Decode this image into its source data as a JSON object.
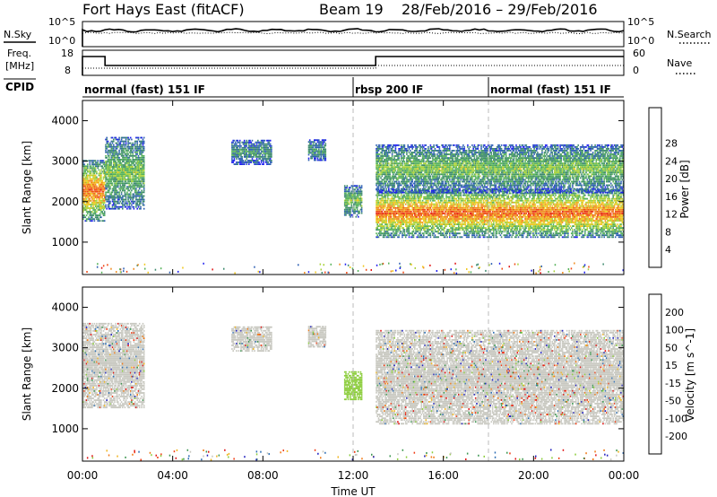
{
  "title": {
    "station": "Fort Hays East (fitACF)",
    "beam": "Beam 19",
    "date_range": "28/Feb/2016 – 29/Feb/2016"
  },
  "top_panels": {
    "nsky_label": "N.Sky",
    "nsearch_label": "N.Search",
    "nsearch_ticks": [
      "10^5",
      "10^0"
    ],
    "nsky_ticks": [
      "10^5",
      "10^0"
    ],
    "freq_label": "Freq.",
    "freq_unit": "[MHz]",
    "freq_ticks": [
      "18",
      "8"
    ],
    "nave_label": "Nave",
    "nave_ticks": [
      "60",
      "0"
    ],
    "cpid_label": "CPID",
    "cpid_segments": [
      {
        "label": "normal (fast) 151 IF",
        "start_hour": 0,
        "end_hour": 12
      },
      {
        "label": "rbsp 200 IF",
        "start_hour": 12,
        "end_hour": 18
      },
      {
        "label": "normal (fast) 151 IF",
        "start_hour": 18,
        "end_hour": 24
      }
    ]
  },
  "x_axis": {
    "label": "Time UT",
    "ticks": [
      "00:00",
      "04:00",
      "08:00",
      "12:00",
      "16:00",
      "20:00",
      "00:00"
    ]
  },
  "chart_data": [
    {
      "type": "heatmap",
      "name": "power",
      "ylabel": "Slant Range [km]",
      "xlim_hours": [
        0,
        24
      ],
      "ylim_km": [
        200,
        4500
      ],
      "yticks": [
        "1000",
        "2000",
        "3000",
        "4000"
      ],
      "colorbar_label": "Power [dB]",
      "colorbar_ticks": [
        "4",
        "8",
        "12",
        "16",
        "20",
        "24",
        "28"
      ],
      "colors": [
        "#1e1ef0",
        "#2d5fb4",
        "#3e8a6e",
        "#56b25a",
        "#a8d23a",
        "#f0c81e",
        "#f08c1e",
        "#f04a14",
        "#e01414"
      ],
      "features": [
        {
          "t0": 0.0,
          "t1": 1.0,
          "r0": 1500,
          "r1": 3000,
          "level": 0.85
        },
        {
          "t0": 1.0,
          "t1": 2.7,
          "r0": 1800,
          "r1": 3600,
          "level": 0.45
        },
        {
          "t0": 6.6,
          "t1": 8.4,
          "r0": 2900,
          "r1": 3500,
          "level": 0.3
        },
        {
          "t0": 10.0,
          "t1": 10.8,
          "r0": 3000,
          "r1": 3500,
          "level": 0.3
        },
        {
          "t0": 11.6,
          "t1": 12.4,
          "r0": 1600,
          "r1": 2400,
          "level": 0.45
        },
        {
          "t0": 13.0,
          "t1": 24.0,
          "r0": 1100,
          "r1": 2300,
          "level": 0.85
        },
        {
          "t0": 13.0,
          "t1": 24.0,
          "r0": 2200,
          "r1": 3400,
          "level": 0.45
        }
      ]
    },
    {
      "type": "heatmap",
      "name": "velocity",
      "ylabel": "Slant Range [km]",
      "xlim_hours": [
        0,
        24
      ],
      "ylim_km": [
        200,
        4500
      ],
      "yticks": [
        "1000",
        "2000",
        "3000",
        "4000"
      ],
      "colorbar_label": "Velocity [m s^-1]",
      "colorbar_ticks": [
        "200",
        "100",
        "50",
        "15",
        "-15",
        "-50",
        "-100",
        "-200"
      ],
      "colors": [
        "#1e1ebe",
        "#2d6eb4",
        "#3c9650",
        "#8ccd3c",
        "#c8c8c0",
        "#f0b41e",
        "#f07814",
        "#f03c14",
        "#e01414"
      ],
      "features": [
        {
          "t0": 0.0,
          "t1": 2.7,
          "r0": 1500,
          "r1": 3600,
          "level": "gray"
        },
        {
          "t0": 6.6,
          "t1": 8.4,
          "r0": 2900,
          "r1": 3500,
          "level": "gray"
        },
        {
          "t0": 10.0,
          "t1": 10.8,
          "r0": 3000,
          "r1": 3500,
          "level": "gray"
        },
        {
          "t0": 11.6,
          "t1": 12.4,
          "r0": 1700,
          "r1": 2400,
          "level": "green"
        },
        {
          "t0": 13.0,
          "t1": 24.0,
          "r0": 1100,
          "r1": 3400,
          "level": "gray"
        }
      ]
    }
  ]
}
